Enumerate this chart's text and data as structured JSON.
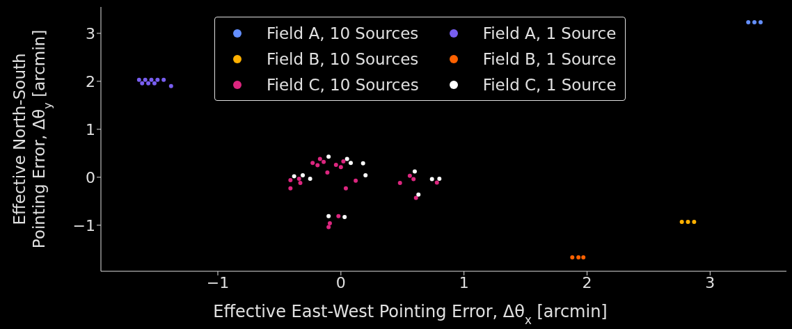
{
  "chart_data": {
    "type": "scatter",
    "xlabel": "Effective East-West Pointing Error, Δθ$_{x}$ [arcmin]",
    "ylabel": "Effective North-South\nPointing Error, Δθ$_{y}$ [arcmin]",
    "xlim": [
      -1.95,
      3.62
    ],
    "ylim": [
      -1.96,
      3.55
    ],
    "xticks": [
      {
        "value": -1,
        "label": "−1"
      },
      0,
      1,
      2,
      3
    ],
    "yticks": [
      {
        "value": -1,
        "label": "−1"
      },
      0,
      1,
      2,
      3
    ],
    "grid": false,
    "legend": "top",
    "marker": "circle",
    "series": [
      {
        "name": "Field A, 10 Sources",
        "color": "#648fff",
        "x": [
          3.31,
          3.36,
          3.41
        ],
        "values": [
          3.23,
          3.23,
          3.23
        ]
      },
      {
        "name": "Field B, 10 Sources",
        "color": "#ffb000",
        "x": [
          2.77,
          2.82,
          2.87
        ],
        "values": [
          -0.93,
          -0.93,
          -0.93
        ]
      },
      {
        "name": "Field C, 10 Sources",
        "color": "#dc267f",
        "x": [
          -0.23,
          -0.17,
          -0.14,
          -0.19,
          -0.11,
          -0.04,
          0.0,
          0.02,
          0.12,
          0.04,
          -0.41,
          -0.41,
          -0.33,
          -0.34,
          0.48,
          0.56,
          0.59,
          0.78,
          0.61,
          -0.09,
          -0.1,
          -0.02
        ],
        "values": [
          0.3,
          0.38,
          0.32,
          0.25,
          0.1,
          0.26,
          0.21,
          0.33,
          -0.07,
          -0.23,
          -0.06,
          -0.23,
          -0.12,
          -0.03,
          -0.12,
          0.03,
          -0.04,
          -0.11,
          -0.43,
          -0.96,
          -1.04,
          -0.81
        ]
      },
      {
        "name": "Field A, 1 Source",
        "color": "#785ef0",
        "x": [
          -1.64,
          -1.59,
          -1.54,
          -1.49,
          -1.44,
          -1.615,
          -1.565,
          -1.515,
          -1.38
        ],
        "values": [
          2.03,
          2.03,
          2.03,
          2.03,
          2.03,
          1.96,
          1.96,
          1.96,
          1.9
        ]
      },
      {
        "name": "Field B, 1 Source",
        "color": "#fe6100",
        "x": [
          1.88,
          1.93,
          1.97
        ],
        "values": [
          -1.67,
          -1.67,
          -1.67
        ]
      },
      {
        "name": "Field C, 1 Source",
        "color": "#ffffff",
        "x": [
          -0.1,
          0.05,
          0.18,
          0.2,
          -0.31,
          -0.25,
          0.6,
          0.8,
          0.63,
          0.03,
          -0.38,
          0.08,
          0.74,
          -0.1
        ],
        "values": [
          0.43,
          0.38,
          0.29,
          0.04,
          0.04,
          -0.03,
          0.12,
          -0.03,
          -0.36,
          -0.83,
          0.02,
          0.3,
          -0.04,
          -0.81
        ]
      }
    ]
  }
}
